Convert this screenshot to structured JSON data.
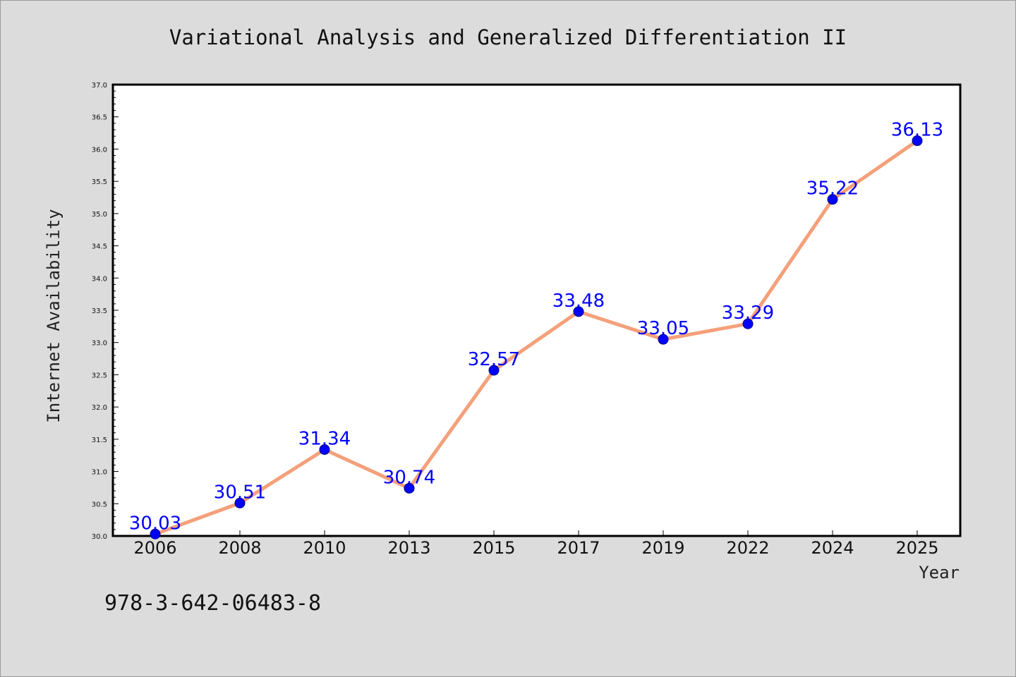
{
  "chart_data": {
    "type": "line",
    "title": "Variational Analysis and Generalized Differentiation II",
    "xlabel": "Year",
    "ylabel": "Internet Availability",
    "categories": [
      "2006",
      "2008",
      "2010",
      "2013",
      "2015",
      "2017",
      "2019",
      "2022",
      "2024",
      "2025"
    ],
    "series": [
      {
        "values": [
          30.03,
          30.51,
          31.34,
          30.74,
          32.57,
          33.48,
          33.05,
          33.29,
          35.22,
          36.13
        ]
      }
    ],
    "ylim": [
      30.0,
      37.0
    ],
    "yticks": [
      "30.0",
      "30.5",
      "31.0",
      "31.5",
      "32.0",
      "32.5",
      "33.0",
      "33.5",
      "34.0",
      "34.5",
      "35.0",
      "35.5",
      "36.0",
      "36.5",
      "37.0"
    ],
    "data_labels": [
      "30.03",
      "30.51",
      "31.34",
      "30.74",
      "32.57",
      "33.48",
      "33.05",
      "33.29",
      "35.22",
      "36.13"
    ],
    "grid": false,
    "legend": "none",
    "colors": {
      "line": "#f4a07a",
      "marker": "#0000ff",
      "label": "#0000ff",
      "plot_bg": "#ffffff",
      "page_bg": "#dcdcdc"
    }
  },
  "footnote": "978-3-642-06483-8"
}
